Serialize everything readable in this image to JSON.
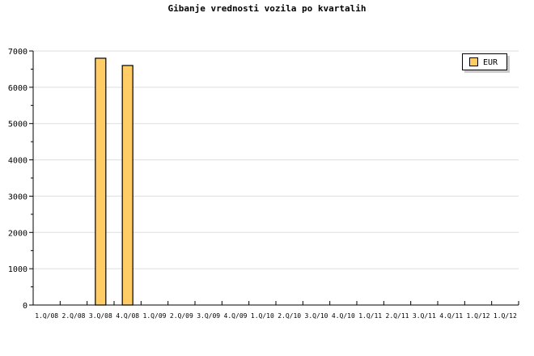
{
  "chart_data": {
    "type": "bar",
    "title": "Gibanje vrednosti vozila po kvartalih",
    "xlabel": "",
    "ylabel": "",
    "categories": [
      "1.Q/08",
      "2.Q/08",
      "3.Q/08",
      "4.Q/08",
      "1.Q/09",
      "2.Q/09",
      "3.Q/09",
      "4.Q/09",
      "1.Q/10",
      "2.Q/10",
      "3.Q/10",
      "4.Q/10",
      "1.Q/11",
      "2.Q/11",
      "3.Q/11",
      "4.Q/11",
      "1.Q/12",
      "1.Q/12"
    ],
    "series": [
      {
        "name": "EUR",
        "values": [
          null,
          null,
          6800,
          6600,
          null,
          null,
          null,
          null,
          null,
          null,
          null,
          null,
          null,
          null,
          null,
          null,
          null,
          null
        ],
        "color": "#ffcc66"
      }
    ],
    "ylim": [
      0,
      7000
    ],
    "yticks": [
      0,
      1000,
      2000,
      3000,
      4000,
      5000,
      6000,
      7000
    ],
    "grid": true,
    "legend": "top-right"
  }
}
